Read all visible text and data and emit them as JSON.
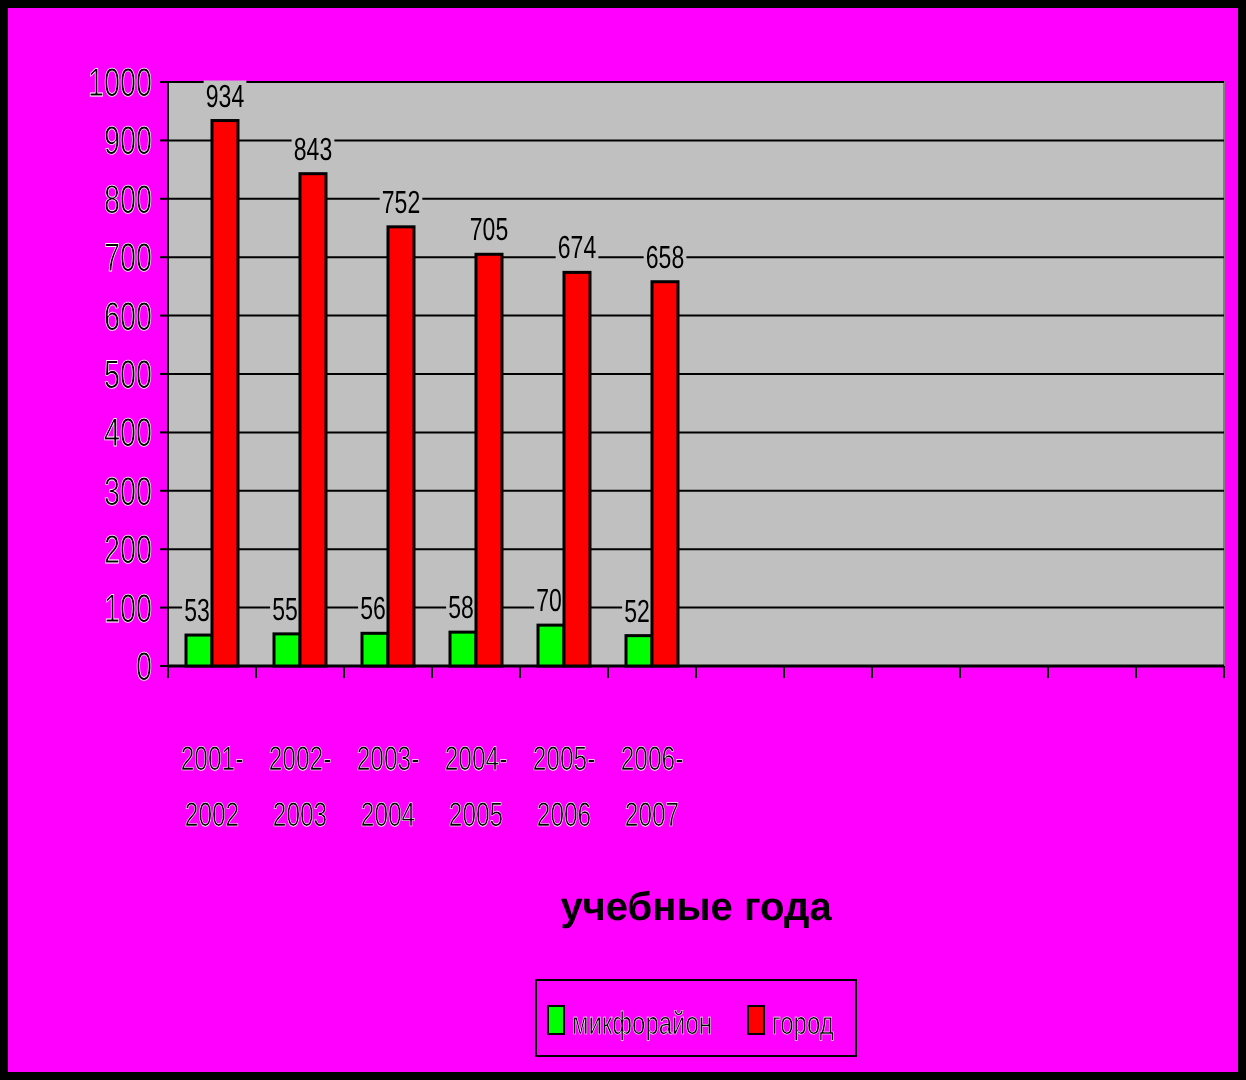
{
  "chart_data": {
    "type": "bar",
    "xlabel": "учебные года",
    "categories": [
      "2001-\n2002",
      "2002-\n2003",
      "2003-\n2004",
      "2004-\n2005",
      "2005-\n2006",
      "2006-\n2007",
      null,
      null,
      null,
      null,
      null,
      null
    ],
    "series": [
      {
        "name": "микфорайон",
        "color": "#00ff00",
        "values": [
          53,
          55,
          56,
          58,
          70,
          52,
          null,
          null,
          null,
          null,
          null,
          null
        ]
      },
      {
        "name": "город",
        "color": "#ff0000",
        "values": [
          934,
          843,
          752,
          705,
          674,
          658,
          null,
          null,
          null,
          null,
          null,
          null
        ]
      }
    ],
    "ylim": [
      0,
      1000
    ],
    "yticks": [
      0,
      100,
      200,
      300,
      400,
      500,
      600,
      700,
      800,
      900,
      1000
    ],
    "grid": "y",
    "legend": "bottom",
    "data_labels": true
  }
}
